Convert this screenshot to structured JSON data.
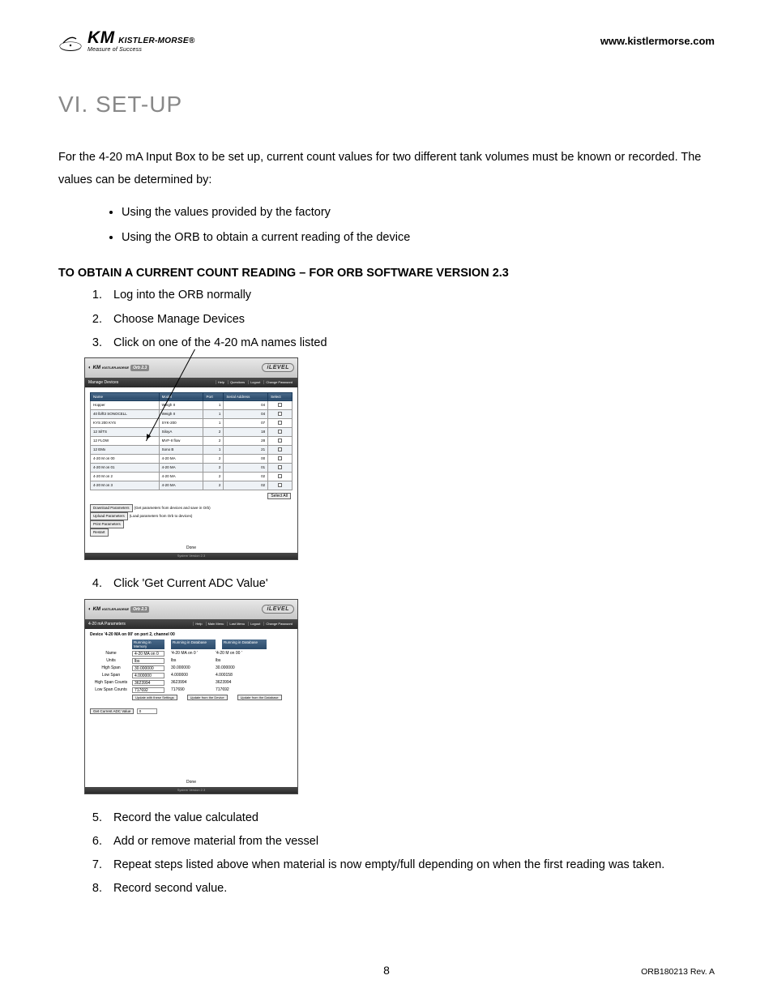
{
  "header": {
    "logo_km": "KM",
    "logo_brand": "KISTLER-MORSE",
    "logo_reg": "®",
    "logo_tagline": "Measure of Success",
    "url": "www.kistlermorse.com"
  },
  "section_heading": "VI.  SET-UP",
  "intro_para": "For the 4-20 mA Input Box to be set up, current count values for two different tank volumes must be known or recorded. The values can be determined by:",
  "intro_bullets": [
    "Using the values provided by the factory",
    "Using the ORB to obtain a current reading of the device"
  ],
  "subheading": "TO OBTAIN A CURRENT COUNT READING – FOR ORB SOFTWARE VERSION 2.3",
  "steps_a": [
    "Log into the ORB normally",
    "Choose Manage Devices",
    "Click on one of the 4-20 mA names listed"
  ],
  "step4": "Click 'Get Current ADC Value'",
  "steps_b": [
    "Record the value calculated",
    "Add or remove material from the vessel",
    "Repeat steps listed above when material is now empty/full depending on when the first reading was taken.",
    "Record second value."
  ],
  "page_number": "8",
  "revision": "ORB180213 Rev. A",
  "screenshot1": {
    "type": "computer-ui-table",
    "background_color": "#ffffff",
    "topbar_gradient": [
      "#e8e8e8",
      "#c8c8c8"
    ],
    "darkbar_gradient": [
      "#4a4a4a",
      "#2a2a2a"
    ],
    "header_gradient": [
      "#4a6a8a",
      "#2a4a6a"
    ],
    "row_alt_bg": "#eef2f6",
    "border_color": "#999999",
    "logo_text": "KM",
    "logo_sub": "KISTLER-MORSE",
    "orb_badge": "Orb 2.3",
    "ilevel_badge": "iLEVEL",
    "dark_title": "Manage Devices",
    "nav_items": [
      "Help",
      "Questions",
      "Logout",
      "Change Password"
    ],
    "columns": [
      "Name",
      "Model",
      "Port",
      "Serial Address",
      "Select"
    ],
    "rows": [
      {
        "name": "Hopper",
        "model": "Weigh II",
        "port": "1",
        "addr": "04",
        "alt": false
      },
      {
        "name": "40 lb/ft3 SONOCELL",
        "model": "Weigh II",
        "port": "1",
        "addr": "04",
        "alt": true
      },
      {
        "name": "KYS 200 KYS",
        "model": "SYK-200",
        "port": "1",
        "addr": "07",
        "alt": false
      },
      {
        "name": "12 SilTS",
        "model": "SiloyA",
        "port": "2",
        "addr": "18",
        "alt": true
      },
      {
        "name": "12 FLOW",
        "model": "MVF-II flow",
        "port": "2",
        "addr": "28",
        "alt": false
      },
      {
        "name": "12 EMx",
        "model": "Sono B",
        "port": "1",
        "addr": "21",
        "alt": true
      },
      {
        "name": "4-20 M on 00",
        "model": "4-20 MA",
        "port": "2",
        "addr": "00",
        "alt": false
      },
      {
        "name": "4-20 M on 01",
        "model": "4-20 MA",
        "port": "2",
        "addr": "01",
        "alt": true
      },
      {
        "name": "4-20 M on 2",
        "model": "4-20 MA",
        "port": "2",
        "addr": "02",
        "alt": false
      },
      {
        "name": "4-20 M on 3",
        "model": "4-20 MA",
        "port": "2",
        "addr": "02",
        "alt": true
      }
    ],
    "select_all_btn": "Select All",
    "btn_download": "Download Parameters",
    "btn_download_note": "(Get parameters from devices and save in Orb)",
    "btn_upload": "Upload Parameters",
    "btn_upload_note": "(Load parameters from Orb to devices)",
    "btn_print": "Print Parameters",
    "btn_restart": "Restart",
    "footer_text": "Done",
    "bottom_text": "System Version 2.3"
  },
  "screenshot2": {
    "type": "computer-ui-form",
    "background_color": "#ffffff",
    "logo_text": "KM",
    "orb_badge": "Orb 2.3",
    "ilevel_badge": "iLEVEL",
    "dark_title": "4-20 mA Parameters",
    "nav_items": [
      "Help",
      "Main Menu",
      "Last Menu",
      "Logout",
      "Change Password"
    ],
    "device_line": "Device '4-20 MA on 00' on port 2, channel 00",
    "col_heads": [
      "",
      "Running in Memory",
      "Running in Database"
    ],
    "rows": [
      {
        "label": "Name",
        "input": "4-20 MA on 0",
        "v1": "'4-20 MA on 0 '",
        "v2": "'4-20 M on 00 '"
      },
      {
        "label": "Units",
        "input": "lbs",
        "v1": "lbs",
        "v2": "lbs"
      },
      {
        "label": "High Span",
        "input": "30.000000",
        "v1": "30.000000",
        "v2": "30.000000"
      },
      {
        "label": "Low Span",
        "input": "4.000000",
        "v1": "4.000000",
        "v2": "4.000158"
      },
      {
        "label": "High Span Counts",
        "input": "3623994",
        "v1": "3623994",
        "v2": "3623994"
      },
      {
        "label": "Low Span Counts",
        "input": "717692",
        "v1": "717690",
        "v2": "717692"
      }
    ],
    "update_btns": [
      "Update with these Settings",
      "Update from the Device",
      "Update from the Database"
    ],
    "get_adc_btn": "Get Current ADC Value",
    "get_adc_val": "0",
    "footer_text": "Done",
    "bottom_text": "System Version 2.3"
  },
  "colors": {
    "heading_gray": "#888888",
    "text_black": "#000000",
    "page_bg": "#ffffff"
  }
}
